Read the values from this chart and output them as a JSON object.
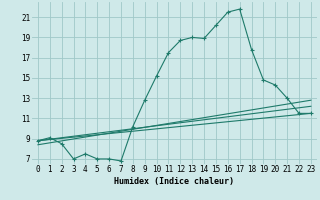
{
  "xlabel": "Humidex (Indice chaleur)",
  "ylabel": "",
  "xlim": [
    -0.5,
    23.5
  ],
  "ylim": [
    6.5,
    22.5
  ],
  "yticks": [
    7,
    9,
    11,
    13,
    15,
    17,
    19,
    21
  ],
  "xticks": [
    0,
    1,
    2,
    3,
    4,
    5,
    6,
    7,
    8,
    9,
    10,
    11,
    12,
    13,
    14,
    15,
    16,
    17,
    18,
    19,
    20,
    21,
    22,
    23
  ],
  "bg_color": "#cfe9e9",
  "grid_color": "#a0c8c8",
  "line_color": "#1e7a6a",
  "curve1_x": [
    0,
    1,
    2,
    3,
    4,
    5,
    6,
    7,
    8,
    9,
    10,
    11,
    12,
    13,
    14,
    15,
    16,
    17,
    18,
    19,
    20,
    21,
    22,
    23
  ],
  "curve1_y": [
    8.8,
    9.1,
    8.5,
    7.0,
    7.5,
    7.0,
    7.0,
    6.8,
    10.2,
    12.8,
    15.2,
    17.5,
    18.7,
    19.0,
    18.9,
    20.2,
    21.5,
    21.8,
    17.8,
    14.8,
    14.3,
    13.0,
    11.5,
    11.5
  ],
  "line2_x": [
    0,
    23
  ],
  "line2_y": [
    8.8,
    11.5
  ],
  "line3_x": [
    0,
    23
  ],
  "line3_y": [
    8.8,
    12.2
  ],
  "line4_x": [
    0,
    23
  ],
  "line4_y": [
    8.4,
    12.8
  ]
}
